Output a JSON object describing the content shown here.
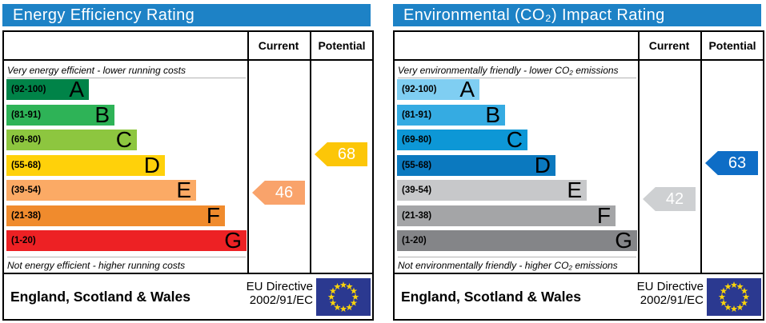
{
  "charts": [
    {
      "title": "Energy Efficiency Rating",
      "header_color": "#1d82c6",
      "col_current": "Current",
      "col_potential": "Potential",
      "top_note": "Very energy efficient - lower running costs",
      "bottom_note": "Not energy efficient - higher running costs",
      "bands": [
        {
          "range": "(92-100)",
          "letter": "A",
          "color": "#008348",
          "width_pct": 34.3
        },
        {
          "range": "(81-91)",
          "letter": "B",
          "color": "#2eb357",
          "width_pct": 45
        },
        {
          "range": "(69-80)",
          "letter": "C",
          "color": "#8dc63f",
          "width_pct": 54.3
        },
        {
          "range": "(55-68)",
          "letter": "D",
          "color": "#ffd10a",
          "width_pct": 66
        },
        {
          "range": "(39-54)",
          "letter": "E",
          "color": "#fbaa65",
          "width_pct": 79
        },
        {
          "range": "(21-38)",
          "letter": "F",
          "color": "#f08b2d",
          "width_pct": 91
        },
        {
          "range": "(1-20)",
          "letter": "G",
          "color": "#ed2124",
          "width_pct": 100
        }
      ],
      "current": {
        "value": "46",
        "color": "#f9a36b"
      },
      "potential": {
        "value": "68",
        "color": "#fcc608"
      },
      "footer_region": "England, Scotland & Wales",
      "directive_line1": "EU Directive",
      "directive_line2": "2002/91/EC"
    },
    {
      "title": "Environmental (CO₂) Impact Rating",
      "header_color": "#1d82c6",
      "col_current": "Current",
      "col_potential": "Potential",
      "top_note": "Very environmentally friendly - lower CO₂ emissions",
      "bottom_note": "Not environmentally friendly - higher CO₂ emissions",
      "bands": [
        {
          "range": "(92-100)",
          "letter": "A",
          "color": "#7fcef2",
          "width_pct": 34.3
        },
        {
          "range": "(81-91)",
          "letter": "B",
          "color": "#35abe2",
          "width_pct": 45
        },
        {
          "range": "(69-80)",
          "letter": "C",
          "color": "#0d97d6",
          "width_pct": 54.3
        },
        {
          "range": "(55-68)",
          "letter": "D",
          "color": "#0b79bf",
          "width_pct": 66
        },
        {
          "range": "(39-54)",
          "letter": "E",
          "color": "#c7c8ca",
          "width_pct": 79
        },
        {
          "range": "(21-38)",
          "letter": "F",
          "color": "#a4a5a7",
          "width_pct": 91
        },
        {
          "range": "(1-20)",
          "letter": "G",
          "color": "#848588",
          "width_pct": 100
        }
      ],
      "current": {
        "value": "42",
        "color": "#ced0d2"
      },
      "potential": {
        "value": "63",
        "color": "#0e6dc6"
      },
      "footer_region": "England, Scotland & Wales",
      "directive_line1": "EU Directive",
      "directive_line2": "2002/91/EC"
    }
  ],
  "eu_flag": {
    "background": "#2b3990",
    "star_color": "#f8d30c"
  },
  "chart_data": [
    {
      "type": "bar",
      "title": "Energy Efficiency Rating",
      "categories": [
        "A (92-100)",
        "B (81-91)",
        "C (69-80)",
        "D (55-68)",
        "E (39-54)",
        "F (21-38)",
        "G (1-20)"
      ],
      "bands": [
        {
          "letter": "A",
          "min": 92,
          "max": 100
        },
        {
          "letter": "B",
          "min": 81,
          "max": 91
        },
        {
          "letter": "C",
          "min": 69,
          "max": 80
        },
        {
          "letter": "D",
          "min": 55,
          "max": 68
        },
        {
          "letter": "E",
          "min": 39,
          "max": 54
        },
        {
          "letter": "F",
          "min": 21,
          "max": 38
        },
        {
          "letter": "G",
          "min": 1,
          "max": 20
        }
      ],
      "scale": [
        1,
        100
      ],
      "current": {
        "value": 46,
        "band": "E"
      },
      "potential": {
        "value": 68,
        "band": "D"
      },
      "annotations": [
        "Very energy efficient - lower running costs",
        "Not energy efficient - higher running costs"
      ],
      "region": "England, Scotland & Wales",
      "directive": "EU Directive 2002/91/EC"
    },
    {
      "type": "bar",
      "title": "Environmental (CO₂) Impact Rating",
      "categories": [
        "A (92-100)",
        "B (81-91)",
        "C (69-80)",
        "D (55-68)",
        "E (39-54)",
        "F (21-38)",
        "G (1-20)"
      ],
      "bands": [
        {
          "letter": "A",
          "min": 92,
          "max": 100
        },
        {
          "letter": "B",
          "min": 81,
          "max": 91
        },
        {
          "letter": "C",
          "min": 69,
          "max": 80
        },
        {
          "letter": "D",
          "min": 55,
          "max": 68
        },
        {
          "letter": "E",
          "min": 39,
          "max": 54
        },
        {
          "letter": "F",
          "min": 21,
          "max": 38
        },
        {
          "letter": "G",
          "min": 1,
          "max": 20
        }
      ],
      "scale": [
        1,
        100
      ],
      "current": {
        "value": 42,
        "band": "E"
      },
      "potential": {
        "value": 63,
        "band": "D"
      },
      "annotations": [
        "Very environmentally friendly - lower CO₂ emissions",
        "Not environmentally friendly - higher CO₂ emissions"
      ],
      "region": "England, Scotland & Wales",
      "directive": "EU Directive 2002/91/EC"
    }
  ]
}
